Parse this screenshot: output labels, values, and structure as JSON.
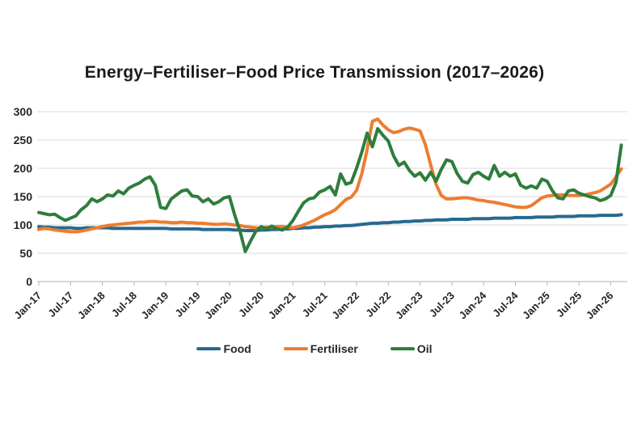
{
  "chart_data": {
    "type": "line",
    "title": "Energy–Fertiliser–Food Price Transmission (2017–2026)",
    "x_frequency": "monthly",
    "x_start": "Jan-2017",
    "x_end": "Mar-2026",
    "x_tick_labels": [
      "Jan-17",
      "Jul-17",
      "Jan-18",
      "Jul-18",
      "Jan-19",
      "Jul-19",
      "Jan-20",
      "Jul-20",
      "Jan-21",
      "Jul-21",
      "Jan-22",
      "Jul-22",
      "Jan-23",
      "Jul-23",
      "Jan-24",
      "Jul-24",
      "Jan-25",
      "Jul-25",
      "Jan-26"
    ],
    "y_ticks": [
      0,
      50,
      100,
      150,
      200,
      250,
      300
    ],
    "ylim": [
      0,
      300
    ],
    "grid": "horizontal",
    "legend_position": "bottom",
    "colors": {
      "grid": "#d9d9d9",
      "axis": "#bfbfbf",
      "text": "#262626"
    },
    "series": [
      {
        "name": "Food",
        "color": "#26698f",
        "values": [
          97,
          96,
          96,
          95,
          95,
          95,
          95,
          94,
          94,
          95,
          95,
          95,
          95,
          95,
          94,
          94,
          94,
          94,
          94,
          94,
          94,
          94,
          94,
          94,
          94,
          93,
          93,
          93,
          93,
          93,
          93,
          92,
          92,
          92,
          92,
          92,
          92,
          91,
          91,
          90,
          90,
          90,
          91,
          91,
          92,
          92,
          93,
          93,
          94,
          94,
          95,
          95,
          96,
          96,
          97,
          97,
          98,
          98,
          99,
          99,
          100,
          101,
          102,
          103,
          103,
          104,
          104,
          105,
          105,
          106,
          106,
          107,
          107,
          108,
          108,
          109,
          109,
          109,
          110,
          110,
          110,
          110,
          111,
          111,
          111,
          111,
          112,
          112,
          112,
          112,
          113,
          113,
          113,
          113,
          114,
          114,
          114,
          114,
          115,
          115,
          115,
          115,
          116,
          116,
          116,
          116,
          117,
          117,
          117,
          117,
          118
        ]
      },
      {
        "name": "Fertiliser",
        "color": "#ed7d31",
        "values": [
          92,
          94,
          93,
          91,
          90,
          89,
          88,
          88,
          89,
          91,
          93,
          95,
          97,
          99,
          100,
          101,
          102,
          103,
          104,
          105,
          105,
          106,
          106,
          105,
          105,
          104,
          104,
          105,
          104,
          104,
          103,
          103,
          102,
          101,
          101,
          102,
          101,
          100,
          99,
          97,
          96,
          95,
          95,
          96,
          96,
          97,
          97,
          96,
          95,
          97,
          100,
          104,
          108,
          113,
          118,
          122,
          127,
          136,
          145,
          149,
          161,
          191,
          233,
          283,
          287,
          276,
          268,
          263,
          265,
          269,
          271,
          269,
          266,
          242,
          206,
          172,
          152,
          146,
          146,
          147,
          148,
          148,
          146,
          144,
          143,
          141,
          140,
          138,
          136,
          134,
          132,
          131,
          131,
          134,
          141,
          148,
          151,
          152,
          153,
          153,
          152,
          152,
          152,
          153,
          155,
          157,
          160,
          166,
          172,
          185,
          199
        ]
      },
      {
        "name": "Oil",
        "color": "#2e7d3c",
        "values": [
          122,
          120,
          118,
          119,
          113,
          108,
          112,
          116,
          127,
          134,
          146,
          141,
          146,
          153,
          151,
          160,
          155,
          165,
          170,
          174,
          181,
          185,
          170,
          131,
          129,
          146,
          153,
          160,
          162,
          151,
          150,
          141,
          146,
          137,
          141,
          148,
          150,
          117,
          89,
          53,
          72,
          89,
          97,
          93,
          98,
          93,
          91,
          96,
          108,
          124,
          139,
          146,
          148,
          158,
          162,
          168,
          153,
          190,
          172,
          175,
          200,
          229,
          262,
          238,
          270,
          258,
          248,
          222,
          205,
          211,
          196,
          186,
          192,
          179,
          193,
          177,
          198,
          215,
          212,
          191,
          177,
          174,
          189,
          193,
          186,
          181,
          205,
          186,
          193,
          186,
          190,
          170,
          165,
          169,
          165,
          181,
          177,
          160,
          148,
          146,
          160,
          162,
          156,
          153,
          150,
          148,
          143,
          146,
          152,
          175,
          241
        ]
      }
    ]
  }
}
